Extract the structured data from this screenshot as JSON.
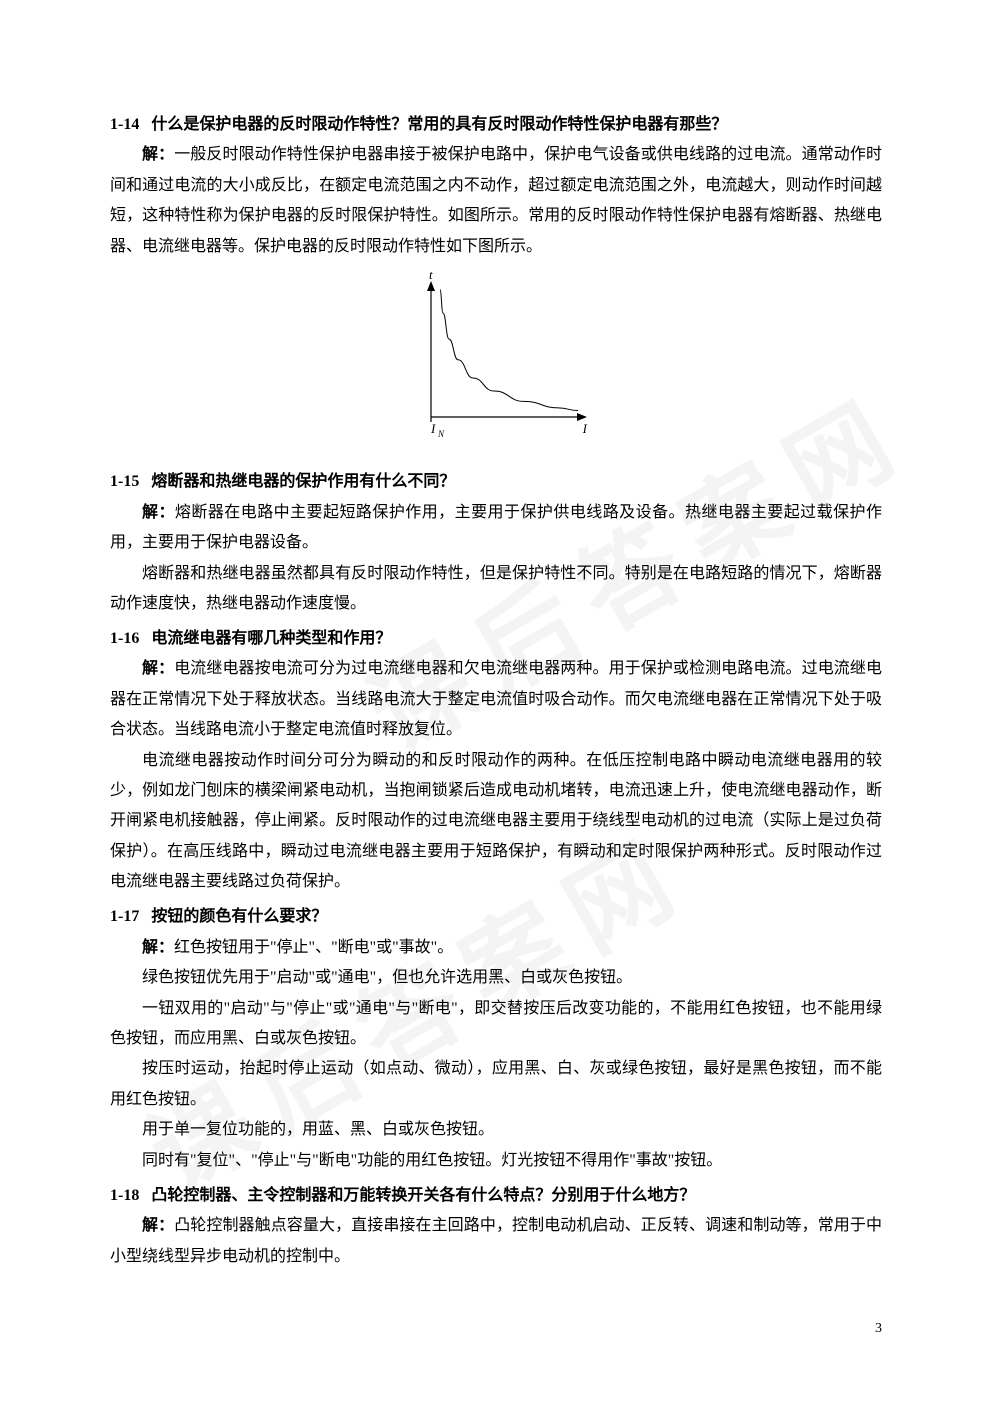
{
  "watermarks": [
    "课后答案网",
    "课后答案网"
  ],
  "page_number": "3",
  "figure": {
    "type": "line",
    "x_label": "I",
    "x_start_label": "I",
    "x_start_sub": "N",
    "y_label": "t",
    "background_color": "#ffffff",
    "axis_color": "#000000",
    "curve_color": "#000000",
    "line_width": 1,
    "axis_width": 1.2,
    "xlim": [
      0,
      100
    ],
    "ylim": [
      0,
      100
    ],
    "curve_points": [
      [
        6,
        2
      ],
      [
        7,
        30
      ],
      [
        10,
        55
      ],
      [
        14,
        70
      ],
      [
        22,
        82
      ],
      [
        36,
        90
      ],
      [
        55,
        95
      ],
      [
        80,
        98
      ],
      [
        98,
        99
      ]
    ],
    "arrow_size": 5
  },
  "questions": [
    {
      "id": "1-14",
      "title": "什么是保护电器的反时限动作特性？常用的具有反时限动作特性保护电器有那些？",
      "paragraphs": [
        "一般反时限动作特性保护电器串接于被保护电路中，保护电气设备或供电线路的过电流。通常动作时间和通过电流的大小成反比，在额定电流范围之内不动作，超过额定电流范围之外，电流越大，则动作时间越短，这种特性称为保护电器的反时限保护特性。如图所示。常用的反时限动作特性保护电器有熔断器、热继电器、电流继电器等。保护电器的反时限动作特性如下图所示。"
      ],
      "has_figure": true
    },
    {
      "id": "1-15",
      "title": "熔断器和热继电器的保护作用有什么不同？",
      "paragraphs": [
        "熔断器在电路中主要起短路保护作用，主要用于保护供电线路及设备。热继电器主要起过载保护作用，主要用于保护电器设备。",
        "熔断器和热继电器虽然都具有反时限动作特性，但是保护特性不同。特别是在电路短路的情况下，熔断器动作速度快，热继电器动作速度慢。"
      ]
    },
    {
      "id": "1-16",
      "title": "电流继电器有哪几种类型和作用？",
      "paragraphs": [
        "电流继电器按电流可分为过电流继电器和欠电流继电器两种。用于保护或检测电路电流。过电流继电器在正常情况下处于释放状态。当线路电流大于整定电流值时吸合动作。而欠电流继电器在正常情况下处于吸合状态。当线路电流小于整定电流值时释放复位。",
        "电流继电器按动作时间分可分为瞬动的和反时限动作的两种。在低压控制电路中瞬动电流继电器用的较少，例如龙门刨床的横梁闸紧电动机，当抱闸锁紧后造成电动机堵转，电流迅速上升，使电流继电器动作，断开闸紧电机接触器，停止闸紧。反时限动作的过电流继电器主要用于绕线型电动机的过电流（实际上是过负荷保护）。在高压线路中，瞬动过电流继电器主要用于短路保护，有瞬动和定时限保护两种形式。反时限动作过电流继电器主要线路过负荷保护。"
      ]
    },
    {
      "id": "1-17",
      "title": "按钮的颜色有什么要求？",
      "paragraphs": [
        "红色按钮用于\"停止\"、\"断电\"或\"事故\"。",
        "绿色按钮优先用于\"启动\"或\"通电\"，但也允许选用黑、白或灰色按钮。",
        "一钮双用的\"启动\"与\"停止\"或\"通电\"与\"断电\"，即交替按压后改变功能的，不能用红色按钮，也不能用绿色按钮，而应用黑、白或灰色按钮。",
        "按压时运动，抬起时停止运动（如点动、微动），应用黑、白、灰或绿色按钮，最好是黑色按钮，而不能用红色按钮。",
        "用于单一复位功能的，用蓝、黑、白或灰色按钮。",
        "同时有\"复位\"、\"停止\"与\"断电\"功能的用红色按钮。灯光按钮不得用作\"事故\"按钮。"
      ]
    },
    {
      "id": "1-18",
      "title": "凸轮控制器、主令控制器和万能转换开关各有什么特点？分别用于什么地方？",
      "paragraphs": [
        "凸轮控制器触点容量大，直接串接在主回路中，控制电动机启动、正反转、调速和制动等，常用于中小型绕线型异步电动机的控制中。"
      ]
    }
  ],
  "answer_label": "解："
}
